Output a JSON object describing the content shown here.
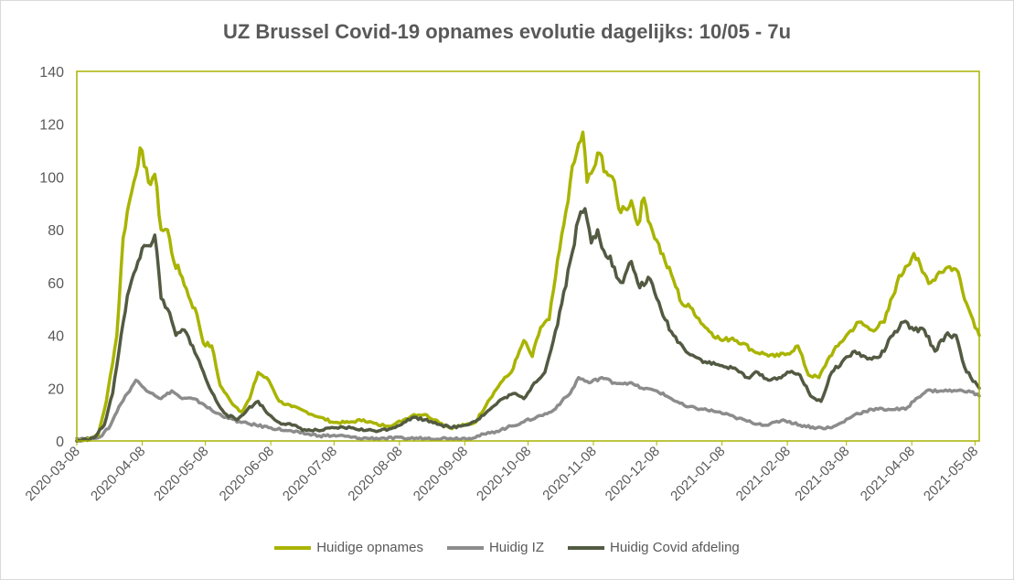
{
  "chart_data": {
    "type": "line",
    "title": "UZ Brussel Covid-19 opnames evolutie dagelijks: 10/05 - 7u",
    "xlabel": "",
    "ylabel": "",
    "ylim": [
      0,
      140
    ],
    "yticks": [
      0,
      20,
      40,
      60,
      80,
      100,
      120,
      140
    ],
    "xlim": [
      "2020-03-08",
      "2021-05-10"
    ],
    "xticks": [
      "2020-03-08",
      "2020-04-08",
      "2020-05-08",
      "2020-06-08",
      "2020-07-08",
      "2020-08-08",
      "2020-09-08",
      "2020-10-08",
      "2020-11-08",
      "2020-12-08",
      "2021-01-08",
      "2021-02-08",
      "2021-03-08",
      "2021-04-08",
      "2021-05-08"
    ],
    "grid": false,
    "legend_position": "bottom",
    "series": [
      {
        "name": "Huidige opnames",
        "color": "#a9b400",
        "points": [
          [
            "2020-03-08",
            0
          ],
          [
            "2020-03-14",
            1
          ],
          [
            "2020-03-18",
            2
          ],
          [
            "2020-03-22",
            15
          ],
          [
            "2020-03-27",
            40
          ],
          [
            "2020-03-30",
            77
          ],
          [
            "2020-04-01",
            87
          ],
          [
            "2020-04-04",
            98
          ],
          [
            "2020-04-07",
            111
          ],
          [
            "2020-04-09",
            104
          ],
          [
            "2020-04-11",
            98
          ],
          [
            "2020-04-14",
            101
          ],
          [
            "2020-04-17",
            80
          ],
          [
            "2020-04-20",
            80
          ],
          [
            "2020-04-23",
            68
          ],
          [
            "2020-04-27",
            62
          ],
          [
            "2020-05-01",
            53
          ],
          [
            "2020-05-04",
            48
          ],
          [
            "2020-05-07",
            37
          ],
          [
            "2020-05-11",
            36
          ],
          [
            "2020-05-15",
            21
          ],
          [
            "2020-05-20",
            15
          ],
          [
            "2020-05-25",
            11
          ],
          [
            "2020-05-29",
            16
          ],
          [
            "2020-06-02",
            26
          ],
          [
            "2020-06-07",
            23
          ],
          [
            "2020-06-12",
            15
          ],
          [
            "2020-06-18",
            13
          ],
          [
            "2020-06-25",
            11
          ],
          [
            "2020-07-01",
            9
          ],
          [
            "2020-07-08",
            7
          ],
          [
            "2020-07-15",
            7
          ],
          [
            "2020-07-22",
            8
          ],
          [
            "2020-07-29",
            6
          ],
          [
            "2020-08-05",
            6
          ],
          [
            "2020-08-10",
            8
          ],
          [
            "2020-08-15",
            10
          ],
          [
            "2020-08-20",
            10
          ],
          [
            "2020-08-25",
            8
          ],
          [
            "2020-09-01",
            5
          ],
          [
            "2020-09-08",
            6
          ],
          [
            "2020-09-13",
            7
          ],
          [
            "2020-09-19",
            15
          ],
          [
            "2020-09-25",
            22
          ],
          [
            "2020-09-30",
            26
          ],
          [
            "2020-10-03",
            32
          ],
          [
            "2020-10-06",
            38
          ],
          [
            "2020-10-10",
            32
          ],
          [
            "2020-10-14",
            43
          ],
          [
            "2020-10-18",
            46
          ],
          [
            "2020-10-21",
            62
          ],
          [
            "2020-10-25",
            82
          ],
          [
            "2020-10-28",
            98
          ],
          [
            "2020-10-31",
            109
          ],
          [
            "2020-11-03",
            117
          ],
          [
            "2020-11-05",
            98
          ],
          [
            "2020-11-08",
            103
          ],
          [
            "2020-11-11",
            109
          ],
          [
            "2020-11-14",
            102
          ],
          [
            "2020-11-17",
            100
          ],
          [
            "2020-11-20",
            88
          ],
          [
            "2020-11-23",
            88
          ],
          [
            "2020-11-26",
            91
          ],
          [
            "2020-11-29",
            82
          ],
          [
            "2020-12-02",
            92
          ],
          [
            "2020-12-05",
            82
          ],
          [
            "2020-12-08",
            76
          ],
          [
            "2020-12-12",
            68
          ],
          [
            "2020-12-16",
            61
          ],
          [
            "2020-12-20",
            52
          ],
          [
            "2020-12-25",
            50
          ],
          [
            "2020-12-30",
            44
          ],
          [
            "2021-01-03",
            41
          ],
          [
            "2021-01-08",
            38
          ],
          [
            "2021-01-13",
            39
          ],
          [
            "2021-01-18",
            37
          ],
          [
            "2021-01-23",
            34
          ],
          [
            "2021-01-28",
            33
          ],
          [
            "2021-02-02",
            32
          ],
          [
            "2021-02-08",
            33
          ],
          [
            "2021-02-13",
            36
          ],
          [
            "2021-02-18",
            25
          ],
          [
            "2021-02-23",
            24
          ],
          [
            "2021-02-28",
            32
          ],
          [
            "2021-03-04",
            36
          ],
          [
            "2021-03-08",
            40
          ],
          [
            "2021-03-14",
            45
          ],
          [
            "2021-03-20",
            42
          ],
          [
            "2021-03-26",
            45
          ],
          [
            "2021-04-01",
            60
          ],
          [
            "2021-04-05",
            66
          ],
          [
            "2021-04-09",
            71
          ],
          [
            "2021-04-13",
            64
          ],
          [
            "2021-04-17",
            60
          ],
          [
            "2021-04-21",
            64
          ],
          [
            "2021-04-26",
            66
          ],
          [
            "2021-04-30",
            64
          ],
          [
            "2021-05-04",
            52
          ],
          [
            "2021-05-07",
            46
          ],
          [
            "2021-05-10",
            40
          ]
        ]
      },
      {
        "name": "Huidig IZ",
        "color": "#8c8c8c",
        "points": [
          [
            "2020-03-08",
            1
          ],
          [
            "2020-03-15",
            1
          ],
          [
            "2020-03-20",
            2
          ],
          [
            "2020-03-24",
            6
          ],
          [
            "2020-03-28",
            13
          ],
          [
            "2020-04-01",
            18
          ],
          [
            "2020-04-05",
            23
          ],
          [
            "2020-04-09",
            20
          ],
          [
            "2020-04-13",
            18
          ],
          [
            "2020-04-17",
            16
          ],
          [
            "2020-04-22",
            19
          ],
          [
            "2020-04-27",
            16
          ],
          [
            "2020-05-02",
            16
          ],
          [
            "2020-05-07",
            14
          ],
          [
            "2020-05-12",
            11
          ],
          [
            "2020-05-18",
            9
          ],
          [
            "2020-05-25",
            7
          ],
          [
            "2020-06-01",
            6
          ],
          [
            "2020-06-08",
            5
          ],
          [
            "2020-06-15",
            4
          ],
          [
            "2020-06-22",
            3
          ],
          [
            "2020-07-01",
            2
          ],
          [
            "2020-07-10",
            2
          ],
          [
            "2020-07-20",
            1
          ],
          [
            "2020-08-01",
            1
          ],
          [
            "2020-08-10",
            1
          ],
          [
            "2020-08-20",
            1
          ],
          [
            "2020-09-01",
            1
          ],
          [
            "2020-09-10",
            1
          ],
          [
            "2020-09-20",
            3
          ],
          [
            "2020-09-28",
            5
          ],
          [
            "2020-10-05",
            7
          ],
          [
            "2020-10-12",
            9
          ],
          [
            "2020-10-19",
            11
          ],
          [
            "2020-10-24",
            15
          ],
          [
            "2020-10-28",
            18
          ],
          [
            "2020-11-01",
            24
          ],
          [
            "2020-11-06",
            22
          ],
          [
            "2020-11-12",
            24
          ],
          [
            "2020-11-18",
            22
          ],
          [
            "2020-11-25",
            22
          ],
          [
            "2020-12-01",
            20
          ],
          [
            "2020-12-08",
            19
          ],
          [
            "2020-12-15",
            16
          ],
          [
            "2020-12-22",
            13
          ],
          [
            "2020-12-30",
            12
          ],
          [
            "2021-01-06",
            11
          ],
          [
            "2021-01-14",
            9
          ],
          [
            "2021-01-22",
            7
          ],
          [
            "2021-01-30",
            6
          ],
          [
            "2021-02-06",
            8
          ],
          [
            "2021-02-14",
            6
          ],
          [
            "2021-02-22",
            5
          ],
          [
            "2021-03-01",
            5
          ],
          [
            "2021-03-06",
            7
          ],
          [
            "2021-03-12",
            10
          ],
          [
            "2021-03-20",
            12
          ],
          [
            "2021-03-28",
            12
          ],
          [
            "2021-04-05",
            12
          ],
          [
            "2021-04-10",
            16
          ],
          [
            "2021-04-15",
            19
          ],
          [
            "2021-04-22",
            19
          ],
          [
            "2021-04-29",
            19
          ],
          [
            "2021-05-05",
            19
          ],
          [
            "2021-05-10",
            17
          ]
        ]
      },
      {
        "name": "Huidig Covid afdeling",
        "color": "#525a42",
        "points": [
          [
            "2020-03-08",
            0
          ],
          [
            "2020-03-16",
            1
          ],
          [
            "2020-03-21",
            6
          ],
          [
            "2020-03-25",
            18
          ],
          [
            "2020-03-29",
            40
          ],
          [
            "2020-04-01",
            55
          ],
          [
            "2020-04-05",
            65
          ],
          [
            "2020-04-08",
            73
          ],
          [
            "2020-04-11",
            74
          ],
          [
            "2020-04-14",
            78
          ],
          [
            "2020-04-17",
            54
          ],
          [
            "2020-04-20",
            50
          ],
          [
            "2020-04-24",
            40
          ],
          [
            "2020-04-28",
            42
          ],
          [
            "2020-05-02",
            36
          ],
          [
            "2020-05-06",
            28
          ],
          [
            "2020-05-10",
            20
          ],
          [
            "2020-05-14",
            14
          ],
          [
            "2020-05-18",
            10
          ],
          [
            "2020-05-23",
            8
          ],
          [
            "2020-05-28",
            12
          ],
          [
            "2020-06-02",
            15
          ],
          [
            "2020-06-07",
            10
          ],
          [
            "2020-06-12",
            7
          ],
          [
            "2020-06-18",
            6
          ],
          [
            "2020-06-25",
            4
          ],
          [
            "2020-07-02",
            4
          ],
          [
            "2020-07-09",
            5
          ],
          [
            "2020-07-16",
            5
          ],
          [
            "2020-07-23",
            4
          ],
          [
            "2020-07-30",
            4
          ],
          [
            "2020-08-05",
            5
          ],
          [
            "2020-08-10",
            7
          ],
          [
            "2020-08-15",
            9
          ],
          [
            "2020-08-20",
            8
          ],
          [
            "2020-08-25",
            7
          ],
          [
            "2020-09-01",
            5
          ],
          [
            "2020-09-08",
            6
          ],
          [
            "2020-09-14",
            8
          ],
          [
            "2020-09-20",
            12
          ],
          [
            "2020-09-26",
            16
          ],
          [
            "2020-10-01",
            18
          ],
          [
            "2020-10-06",
            16
          ],
          [
            "2020-10-11",
            22
          ],
          [
            "2020-10-16",
            26
          ],
          [
            "2020-10-20",
            38
          ],
          [
            "2020-10-24",
            52
          ],
          [
            "2020-10-28",
            68
          ],
          [
            "2020-11-01",
            84
          ],
          [
            "2020-11-04",
            88
          ],
          [
            "2020-11-07",
            75
          ],
          [
            "2020-11-10",
            80
          ],
          [
            "2020-11-13",
            72
          ],
          [
            "2020-11-16",
            70
          ],
          [
            "2020-11-19",
            62
          ],
          [
            "2020-11-22",
            60
          ],
          [
            "2020-11-26",
            68
          ],
          [
            "2020-11-30",
            58
          ],
          [
            "2020-12-04",
            62
          ],
          [
            "2020-12-08",
            54
          ],
          [
            "2020-12-12",
            46
          ],
          [
            "2020-12-16",
            40
          ],
          [
            "2020-12-21",
            35
          ],
          [
            "2020-12-26",
            32
          ],
          [
            "2020-12-31",
            30
          ],
          [
            "2021-01-05",
            29
          ],
          [
            "2021-01-10",
            28
          ],
          [
            "2021-01-15",
            27
          ],
          [
            "2021-01-20",
            24
          ],
          [
            "2021-01-25",
            26
          ],
          [
            "2021-01-30",
            23
          ],
          [
            "2021-02-04",
            24
          ],
          [
            "2021-02-09",
            26
          ],
          [
            "2021-02-14",
            25
          ],
          [
            "2021-02-19",
            17
          ],
          [
            "2021-02-24",
            15
          ],
          [
            "2021-03-01",
            26
          ],
          [
            "2021-03-06",
            30
          ],
          [
            "2021-03-12",
            34
          ],
          [
            "2021-03-18",
            31
          ],
          [
            "2021-03-24",
            32
          ],
          [
            "2021-03-30",
            40
          ],
          [
            "2021-04-04",
            45
          ],
          [
            "2021-04-09",
            42
          ],
          [
            "2021-04-14",
            42
          ],
          [
            "2021-04-19",
            34
          ],
          [
            "2021-04-24",
            40
          ],
          [
            "2021-04-29",
            40
          ],
          [
            "2021-05-03",
            28
          ],
          [
            "2021-05-06",
            24
          ],
          [
            "2021-05-10",
            20
          ]
        ]
      }
    ]
  }
}
